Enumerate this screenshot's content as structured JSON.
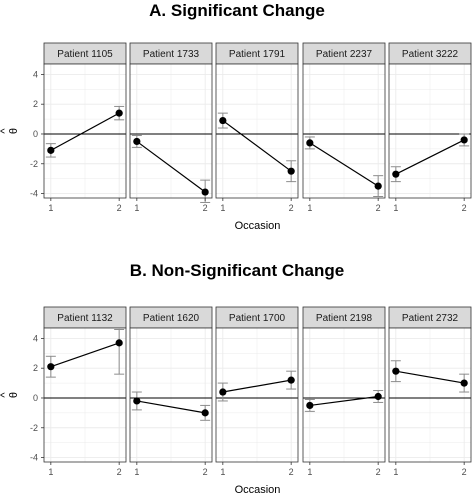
{
  "chart_data": [
    {
      "type": "line",
      "title": "A.   Significant Change",
      "xlabel": "Occasion",
      "ylabel": "θ̂",
      "ylabel_symbol": "θ",
      "ylabel_accent": "^",
      "x": [
        1,
        2
      ],
      "xticks": [
        "1",
        "2"
      ],
      "ylim": [
        -4.3,
        4.7
      ],
      "yticks": [
        -4,
        -2,
        0,
        2,
        4
      ],
      "reference_line": 0,
      "grid": true,
      "colors": {
        "strip": "#d9d9d9",
        "point": "#000000",
        "errorbar": "#8c8c8c",
        "grid": "#ebebeb",
        "zero_line": "#000000"
      },
      "panels": [
        {
          "name": "Patient 1105",
          "values": [
            -1.1,
            1.4
          ],
          "lower": [
            -1.55,
            0.95
          ],
          "upper": [
            -0.65,
            1.85
          ]
        },
        {
          "name": "Patient 1733",
          "values": [
            -0.5,
            -3.9
          ],
          "lower": [
            -0.9,
            -4.6
          ],
          "upper": [
            -0.1,
            -3.1
          ]
        },
        {
          "name": "Patient 1791",
          "values": [
            0.9,
            -2.5
          ],
          "lower": [
            0.4,
            -3.2
          ],
          "upper": [
            1.4,
            -1.8
          ]
        },
        {
          "name": "Patient 2237",
          "values": [
            -0.6,
            -3.5
          ],
          "lower": [
            -1.0,
            -4.2
          ],
          "upper": [
            -0.2,
            -2.8
          ]
        },
        {
          "name": "Patient 3222",
          "values": [
            -2.7,
            -0.4
          ],
          "lower": [
            -3.2,
            -0.8
          ],
          "upper": [
            -2.2,
            0.0
          ]
        }
      ]
    },
    {
      "type": "line",
      "title": "B.   Non-Significant Change",
      "xlabel": "Occasion",
      "ylabel": "θ̂",
      "ylabel_symbol": "θ",
      "ylabel_accent": "^",
      "x": [
        1,
        2
      ],
      "xticks": [
        "1",
        "2"
      ],
      "ylim": [
        -4.3,
        4.7
      ],
      "yticks": [
        -4,
        -2,
        0,
        2,
        4
      ],
      "reference_line": 0,
      "grid": true,
      "colors": {
        "strip": "#d9d9d9",
        "point": "#000000",
        "errorbar": "#8c8c8c",
        "grid": "#ebebeb",
        "zero_line": "#000000"
      },
      "panels": [
        {
          "name": "Patient 1132",
          "values": [
            2.1,
            3.7
          ],
          "lower": [
            1.4,
            1.6
          ],
          "upper": [
            2.8,
            4.6
          ]
        },
        {
          "name": "Patient 1620",
          "values": [
            -0.2,
            -1.0
          ],
          "lower": [
            -0.8,
            -1.5
          ],
          "upper": [
            0.4,
            -0.5
          ]
        },
        {
          "name": "Patient 1700",
          "values": [
            0.4,
            1.2
          ],
          "lower": [
            -0.2,
            0.6
          ],
          "upper": [
            1.0,
            1.8
          ]
        },
        {
          "name": "Patient 2198",
          "values": [
            -0.5,
            0.1
          ],
          "lower": [
            -0.9,
            -0.3
          ],
          "upper": [
            -0.1,
            0.5
          ]
        },
        {
          "name": "Patient 2732",
          "values": [
            1.8,
            1.0
          ],
          "lower": [
            1.1,
            0.4
          ],
          "upper": [
            2.5,
            1.6
          ]
        }
      ]
    }
  ]
}
